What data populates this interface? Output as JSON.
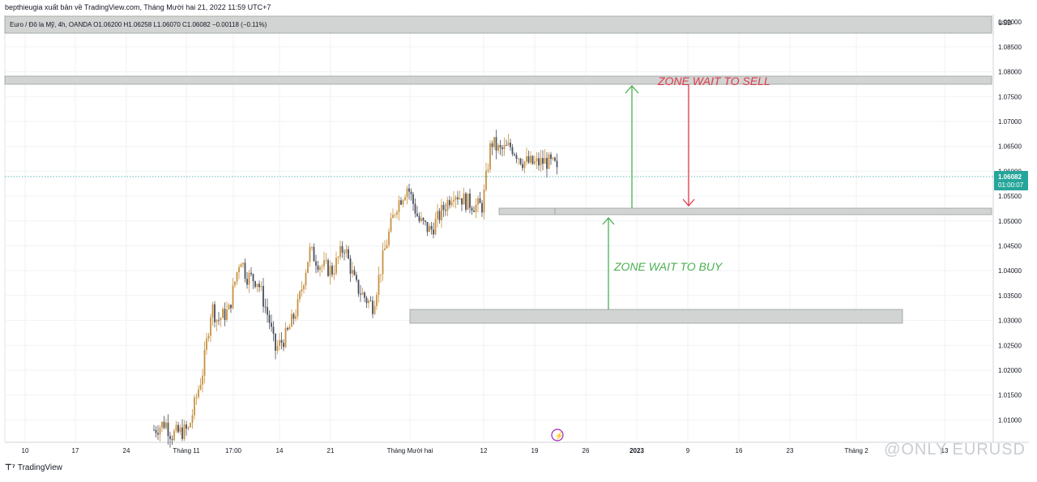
{
  "header": {
    "credit": "bepthieugia xuất bản về TradingView.com, Tháng Mười hai 21, 2022 11:59 UTC+7",
    "legend": "Euro / Đô la Mỹ, 4h, OANDA  O1.06200  H1.06258  L1.06070  C1.06082  −0.00118 (−0.11%)"
  },
  "price_axis": {
    "currency": "USD",
    "current_price": "1.06082",
    "countdown": "01:00:07"
  },
  "annotations": {
    "sell_label": "ZONE WAIT TO SELL",
    "buy_label": "ZONE WAIT TO BUY"
  },
  "footer": {
    "brand": "TradingView",
    "watermark": "@ONLY EURUSD"
  },
  "colors": {
    "up": "#c8913f",
    "down": "#4a4f5c",
    "zone_fill": "#d1d4d2",
    "sell": "#e0394b",
    "buy": "#4caf50",
    "price_tag": "#26a69a"
  },
  "chart_data": {
    "type": "candlestick",
    "symbol": "EURUSD",
    "timeframe": "4h",
    "ylim": [
      1.0055,
      1.0915
    ],
    "y_ticks": [
      "1.01000",
      "1.01500",
      "1.02000",
      "1.02500",
      "1.03000",
      "1.03500",
      "1.04000",
      "1.04500",
      "1.05000",
      "1.05500",
      "1.06000",
      "1.06500",
      "1.07000",
      "1.07500",
      "1.08000",
      "1.08500",
      "1.09000"
    ],
    "x_ticks": [
      "10",
      "17",
      "24",
      "Tháng 11",
      "17:00",
      "14",
      "21",
      "Tháng Mười hai",
      "12",
      "19",
      "26",
      "2023",
      "9",
      "16",
      "23",
      "Tháng 2",
      "13"
    ],
    "close_path": [
      [
        0.0,
        1.008
      ],
      [
        0.02,
        1.0095
      ],
      [
        0.03,
        1.007
      ],
      [
        0.06,
        1.008
      ],
      [
        0.085,
        1.02
      ],
      [
        0.1,
        1.033
      ],
      [
        0.11,
        1.03
      ],
      [
        0.13,
        1.032
      ],
      [
        0.15,
        1.043
      ],
      [
        0.16,
        1.039
      ],
      [
        0.18,
        1.038
      ],
      [
        0.2,
        1.03
      ],
      [
        0.21,
        1.024
      ],
      [
        0.23,
        1.027
      ],
      [
        0.25,
        1.033
      ],
      [
        0.27,
        1.044
      ],
      [
        0.29,
        1.041
      ],
      [
        0.31,
        1.04
      ],
      [
        0.33,
        1.045
      ],
      [
        0.35,
        1.037
      ],
      [
        0.37,
        1.034
      ],
      [
        0.38,
        1.033
      ],
      [
        0.4,
        1.044
      ],
      [
        0.42,
        1.053
      ],
      [
        0.44,
        1.057
      ],
      [
        0.46,
        1.05
      ],
      [
        0.48,
        1.048
      ],
      [
        0.5,
        1.052
      ],
      [
        0.52,
        1.056
      ],
      [
        0.54,
        1.054
      ],
      [
        0.56,
        1.053
      ],
      [
        0.57,
        1.053
      ],
      [
        0.585,
        1.066
      ],
      [
        0.6,
        1.064
      ],
      [
        0.62,
        1.065
      ],
      [
        0.64,
        1.062
      ],
      [
        0.66,
        1.0615
      ],
      [
        0.68,
        1.062
      ],
      [
        0.7,
        1.0608
      ]
    ],
    "levels": {
      "current": 1.06082,
      "sell_zone": [
        1.08,
        1.0815
      ],
      "mid_zone": [
        1.0532,
        1.0545
      ],
      "buy_zone": [
        1.031,
        1.0335
      ],
      "top_band": [
        1.09,
        1.0935
      ]
    }
  }
}
